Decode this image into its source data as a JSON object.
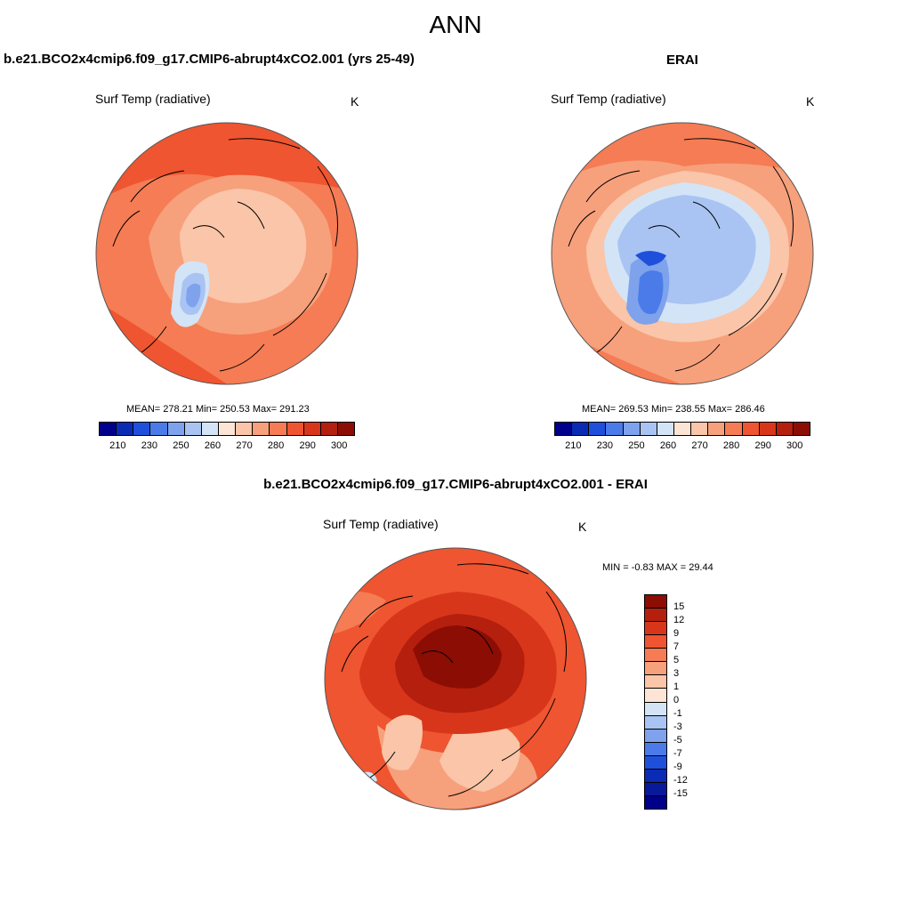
{
  "title": "ANN",
  "panels": {
    "model": {
      "title": "b.e21.BCO2x4cmip6.f09_g17.CMIP6-abrupt4xCO2.001 (yrs 25-49)",
      "variable": "Surf Temp (radiative)",
      "units": "K",
      "stats": "MEAN= 278.21  Min= 250.53  Max= 291.23"
    },
    "obs": {
      "title": "ERAI",
      "variable": "Surf Temp (radiative)",
      "units": "K",
      "stats": "MEAN= 269.53  Min= 238.55  Max= 286.46"
    },
    "diff": {
      "title": "b.e21.BCO2x4cmip6.f09_g17.CMIP6-abrupt4xCO2.001 - ERAI",
      "variable": "Surf Temp (radiative)",
      "units": "K",
      "stats": "MIN =  -0.83 MAX =  29.44"
    }
  },
  "colorbar_abs": {
    "ticks": [
      "210",
      "230",
      "250",
      "260",
      "270",
      "280",
      "290",
      "300"
    ],
    "colors": [
      "#00008c",
      "#0a2bb4",
      "#1e50dc",
      "#4a7be8",
      "#7ea2ec",
      "#a9c4f2",
      "#d3e4f7",
      "#fde5d6",
      "#fac5a8",
      "#f7a07c",
      "#f57c54",
      "#ee5530",
      "#d8361a",
      "#b41f0e",
      "#8c0d04"
    ]
  },
  "colorbar_diff": {
    "ticks": [
      "15",
      "12",
      "9",
      "7",
      "5",
      "3",
      "1",
      "0",
      "-1",
      "-3",
      "-5",
      "-7",
      "-9",
      "-12",
      "-15"
    ],
    "colors": [
      "#8c0d04",
      "#b41f0e",
      "#d8361a",
      "#ee5530",
      "#f57c54",
      "#f7a07c",
      "#fac5a8",
      "#fde5d6",
      "#d3e4f7",
      "#a9c4f2",
      "#7ea2ec",
      "#4a7be8",
      "#1e50dc",
      "#0a2bb4",
      "#081a9a",
      "#00008c"
    ]
  },
  "map_colors": {
    "warm_dark": "#d8361a",
    "warm": "#ee5530",
    "warm_mid": "#f57c54",
    "warm_light": "#f7a07c",
    "pale": "#fac5a8",
    "very_pale": "#fde5d6",
    "cold_pale": "#d3e4f7",
    "cold_light": "#a9c4f2",
    "cold": "#7ea2ec",
    "cold_dark": "#4a7be8",
    "deep_red": "#b41f0e",
    "darkest_red": "#8c0d04"
  }
}
